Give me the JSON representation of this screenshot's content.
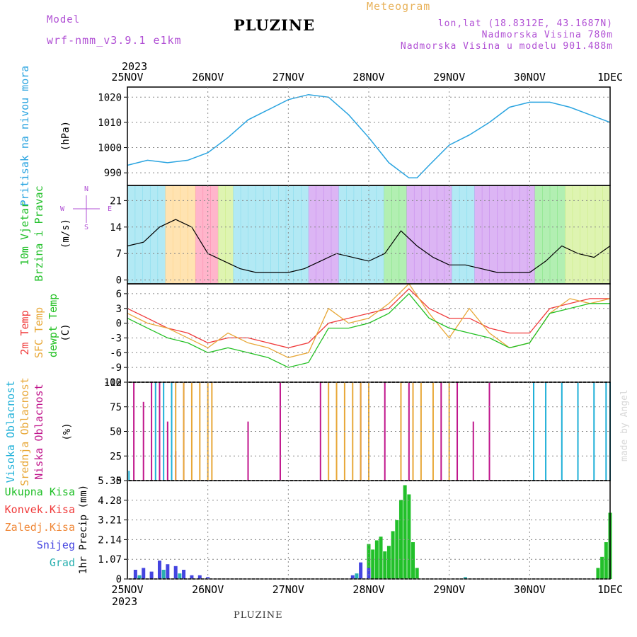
{
  "header": {
    "model_label": "Model",
    "model_name": "wrf-nmm_v3.9.1  e1km",
    "title": "PLUZINE",
    "meteogram_label": "Meteogram",
    "lonlat": "lon,lat (18.8312E, 43.1687N)",
    "elevation": "Nadmorska Visina 780m",
    "model_elevation": "Nadmorska Visina u modelu 901.488m",
    "year_top": "2023",
    "year_bottom": "2023",
    "footer": "PLUZINE",
    "credit": "made by Angel"
  },
  "colors": {
    "pressure": "#2aa4e0",
    "wind_label": "#22c02a",
    "wind_speed": "#000000",
    "temp_2m": "#f03a3a",
    "temp_sfc": "#e8a838",
    "dewpoint": "#22c022",
    "cloud_high": "#1fb0d8",
    "cloud_mid": "#e8a838",
    "cloud_low": "#c0168c",
    "precip_total": "#22c02a",
    "precip_conv": "#f03a3a",
    "precip_strat": "#f08838",
    "snow": "#4444e0",
    "grad": "#2ab0b0",
    "purple": "#b04fd4"
  },
  "chart_data": [
    {
      "type": "line",
      "panel": "pressure",
      "ylabel": "Pritisak na nivou mora",
      "unit": "(hPa)",
      "x_ticks": [
        "25NOV",
        "26NOV",
        "27NOV",
        "28NOV",
        "29NOV",
        "30NOV",
        "1DEC"
      ],
      "ylim": [
        985,
        1024
      ],
      "y_ticks": [
        990,
        1000,
        1010,
        1020
      ],
      "grid": true,
      "x": [
        0,
        0.25,
        0.5,
        0.75,
        1.0,
        1.25,
        1.5,
        1.75,
        2.0,
        2.25,
        2.5,
        2.75,
        3.0,
        3.25,
        3.5,
        3.6,
        3.75,
        4.0,
        4.25,
        4.5,
        4.75,
        5.0,
        5.25,
        5.5,
        5.75,
        6.0
      ],
      "series": [
        {
          "name": "MSLP",
          "values": [
            993,
            995,
            994,
            995,
            998,
            1004,
            1011,
            1015,
            1019,
            1021,
            1020,
            1013,
            1004,
            994,
            988,
            988,
            993,
            1001,
            1005,
            1010,
            1016,
            1018,
            1018,
            1016,
            1013,
            1010
          ]
        }
      ]
    },
    {
      "type": "line",
      "panel": "wind",
      "ylabel": "10m Vjetar Brzina i Pravac",
      "unit": "(m/s)",
      "compass": {
        "n": "N",
        "s": "S",
        "e": "E",
        "w": "W"
      },
      "ylim": [
        -1,
        25
      ],
      "y_ticks": [
        0,
        7,
        14,
        21
      ],
      "x": [
        0,
        0.2,
        0.4,
        0.6,
        0.8,
        1.0,
        1.2,
        1.4,
        1.6,
        1.8,
        2.0,
        2.2,
        2.4,
        2.6,
        2.8,
        3.0,
        3.2,
        3.4,
        3.6,
        3.8,
        4.0,
        4.2,
        4.4,
        4.6,
        4.8,
        5.0,
        5.2,
        5.4,
        5.6,
        5.8,
        6.0
      ],
      "series": [
        {
          "name": "Brzina",
          "values": [
            9,
            10,
            14,
            16,
            14,
            7,
            5,
            3,
            2,
            2,
            2,
            3,
            5,
            7,
            6,
            5,
            7,
            13,
            9,
            6,
            4,
            4,
            3,
            2,
            2,
            2,
            5,
            9,
            7,
            6,
            9
          ]
        }
      ]
    },
    {
      "type": "line",
      "panel": "temperature",
      "ylabels": [
        "2m Temp",
        "SFC Temp",
        "dewpt Temp"
      ],
      "unit": "(C)",
      "ylim": [
        -12,
        8
      ],
      "y_ticks": [
        -12,
        -9,
        -6,
        -3,
        0,
        3,
        6
      ],
      "x": [
        0,
        0.25,
        0.5,
        0.75,
        1.0,
        1.25,
        1.5,
        1.75,
        2.0,
        2.25,
        2.5,
        2.75,
        3.0,
        3.25,
        3.5,
        3.75,
        4.0,
        4.25,
        4.5,
        4.75,
        5.0,
        5.25,
        5.5,
        5.75,
        6.0
      ],
      "series": [
        {
          "name": "2m Temp",
          "values": [
            3,
            1,
            -1,
            -2,
            -4,
            -3,
            -3,
            -4,
            -5,
            -4,
            0,
            1,
            2,
            3,
            7,
            3,
            1,
            1,
            -1,
            -2,
            -2,
            3,
            4,
            5,
            5
          ]
        },
        {
          "name": "SFC Temp",
          "values": [
            2,
            0,
            -1,
            -3,
            -5,
            -2,
            -4,
            -5,
            -7,
            -6,
            3,
            0,
            1,
            4,
            8,
            2,
            -3,
            3,
            -2,
            -5,
            -4,
            2,
            5,
            4,
            5
          ]
        },
        {
          "name": "dewpt Temp",
          "values": [
            1,
            -1,
            -3,
            -4,
            -6,
            -5,
            -6,
            -7,
            -9,
            -8,
            -1,
            -1,
            0,
            2,
            6,
            1,
            -1,
            -2,
            -3,
            -5,
            -4,
            2,
            3,
            4,
            4
          ]
        }
      ]
    },
    {
      "type": "bar",
      "panel": "clouds",
      "ylabels": [
        "Visoka Oblacnost",
        "Srednja Oblacnost",
        "Niska Oblacnost"
      ],
      "unit": "(%)",
      "ylim": [
        0,
        100
      ],
      "y_ticks": [
        0,
        25,
        50,
        75,
        100
      ],
      "series": [
        {
          "name": "Niska Oblacnost",
          "x": [
            0.08,
            0.2,
            0.3,
            0.4,
            0.5,
            0.6,
            0.7,
            1.5,
            1.9,
            2.4,
            2.9,
            3.2,
            3.5,
            3.9,
            4.1,
            4.3,
            4.5
          ],
          "values": [
            100,
            80,
            100,
            100,
            60,
            30,
            100,
            60,
            100,
            100,
            100,
            100,
            100,
            100,
            100,
            60,
            100
          ]
        },
        {
          "name": "Srednja Oblacnost",
          "x": [
            0.6,
            0.7,
            0.8,
            0.9,
            1.0,
            1.05,
            2.5,
            2.6,
            2.7,
            2.8,
            2.9,
            3.0,
            3.4,
            3.55,
            3.65,
            3.8,
            4.0
          ],
          "values": [
            100,
            100,
            100,
            100,
            100,
            100,
            100,
            100,
            100,
            100,
            100,
            100,
            100,
            100,
            100,
            100,
            100
          ]
        },
        {
          "name": "Visoka Oblacnost",
          "x": [
            0.02,
            0.35,
            0.45,
            0.55,
            5.05,
            5.2,
            5.4,
            5.6,
            5.8,
            5.95,
            6.0
          ],
          "values": [
            10,
            100,
            100,
            100,
            100,
            100,
            100,
            100,
            100,
            100,
            100
          ]
        }
      ]
    },
    {
      "type": "bar",
      "panel": "precipitation",
      "ylabels": [
        "Ukupna Kisa",
        "Konvek.Kisa",
        "Zaledj.Kisa",
        "Snijeg",
        "Grad"
      ],
      "unit": "1hr Precip (mm)",
      "ylim": [
        0,
        5.35
      ],
      "y_ticks": [
        0,
        1.07,
        2.14,
        3.21,
        4.28,
        5.35
      ],
      "series": [
        {
          "name": "Ukupna Kisa",
          "x": [
            3.0,
            3.05,
            3.1,
            3.15,
            3.2,
            3.25,
            3.3,
            3.35,
            3.4,
            3.45,
            3.5,
            3.55,
            3.6,
            5.85,
            5.9,
            5.95,
            6.0
          ],
          "values": [
            1.9,
            1.6,
            2.1,
            2.3,
            1.5,
            1.8,
            2.6,
            3.2,
            4.3,
            5.1,
            4.6,
            2.0,
            0.6,
            0.6,
            1.2,
            2.0,
            3.6
          ]
        },
        {
          "name": "Snijeg",
          "x": [
            0.1,
            0.2,
            0.3,
            0.4,
            0.5,
            0.6,
            0.7,
            0.8,
            0.9,
            1.0,
            2.8,
            2.9,
            3.0
          ],
          "values": [
            0.5,
            0.6,
            0.4,
            1.0,
            0.8,
            0.7,
            0.5,
            0.2,
            0.2,
            0.1,
            0.2,
            0.9,
            0.6
          ]
        },
        {
          "name": "Grad",
          "x": [
            0.15,
            0.45,
            0.65,
            2.85,
            4.2
          ],
          "values": [
            0.2,
            0.5,
            0.3,
            0.3,
            0.1
          ]
        }
      ]
    }
  ]
}
